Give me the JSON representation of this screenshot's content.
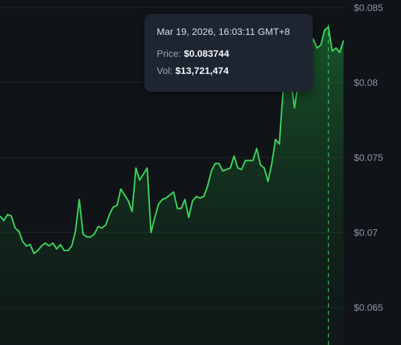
{
  "chart_data": {
    "type": "area",
    "y_ticks": [
      "$0.085",
      "$0.08",
      "$0.075",
      "$0.07",
      "$0.065"
    ],
    "ylim": [
      0.0625,
      0.0855
    ],
    "series": [
      {
        "values": [
          0.0711,
          0.0708,
          0.0712,
          0.0711,
          0.0703,
          0.0701,
          0.0694,
          0.0691,
          0.0692,
          0.0686,
          0.0688,
          0.0691,
          0.0693,
          0.0691,
          0.0693,
          0.0689,
          0.0692,
          0.0688,
          0.0688,
          0.0691,
          0.0701,
          0.0722,
          0.0699,
          0.0697,
          0.0697,
          0.0699,
          0.0704,
          0.0703,
          0.0705,
          0.0712,
          0.0717,
          0.0718,
          0.0729,
          0.0725,
          0.0721,
          0.0714,
          0.0743,
          0.0735,
          0.0739,
          0.0743,
          0.07,
          0.071,
          0.0719,
          0.0722,
          0.0723,
          0.0725,
          0.0727,
          0.0716,
          0.0716,
          0.0722,
          0.071,
          0.0721,
          0.0724,
          0.0723,
          0.0724,
          0.0731,
          0.0741,
          0.0746,
          0.0746,
          0.0741,
          0.0742,
          0.0743,
          0.0751,
          0.0743,
          0.0742,
          0.0748,
          0.0748,
          0.0748,
          0.0756,
          0.0745,
          0.0743,
          0.0734,
          0.0746,
          0.0762,
          0.0759,
          0.0795,
          0.0816,
          0.0803,
          0.0783,
          0.08,
          0.0807,
          0.0812,
          0.0821,
          0.0829,
          0.0823,
          0.0825,
          0.0835,
          0.0837,
          0.0821,
          0.0823,
          0.082,
          0.0828
        ]
      }
    ],
    "crosshair_index": 87,
    "line_color": "#3ecf5a",
    "grid": true
  },
  "tooltip": {
    "timestamp": "Mar 19, 2026, 16:03:11 GMT+8",
    "price_label": "Price:",
    "price_value": "$0.083744",
    "vol_label": "Vol:",
    "vol_value": "$13,721,474"
  }
}
